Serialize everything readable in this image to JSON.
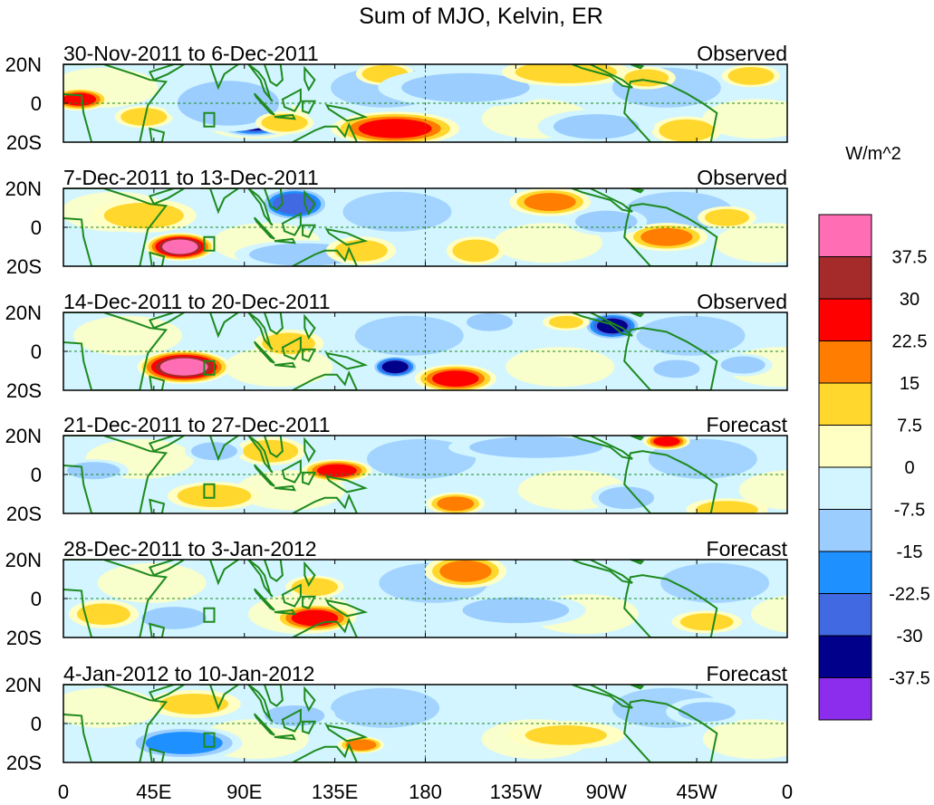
{
  "chart_data": {
    "type": "heatmap",
    "title": "Sum of MJO, Kelvin, ER",
    "units_label": "W/m^2",
    "x_ticks": [
      "0",
      "45E",
      "90E",
      "135E",
      "180",
      "135W",
      "90W",
      "45W",
      "0"
    ],
    "x_tick_values": [
      0,
      45,
      90,
      135,
      180,
      225,
      270,
      315,
      360
    ],
    "xlim": [
      0,
      360
    ],
    "y_ticks": [
      "20N",
      "0",
      "20S"
    ],
    "y_tick_values": [
      20,
      0,
      -20
    ],
    "ylim": [
      -20,
      20
    ],
    "colorbar": {
      "levels": [
        "37.5",
        "30",
        "22.5",
        "15",
        "7.5",
        "0",
        "-7.5",
        "-15",
        "-22.5",
        "-30",
        "-37.5"
      ],
      "colors": [
        "#ff6eb4",
        "#a52a2a",
        "#ff0000",
        "#ff7d00",
        "#ffd72d",
        "#ffffc3",
        "#d2f5ff",
        "#9bcdff",
        "#1e90ff",
        "#4169e1",
        "#00008b",
        "#8c2ded"
      ]
    },
    "colors": {
      "coastline": "#1e8a1e",
      "guide_lines": "#1e8a1e",
      "frame": "#000000"
    },
    "panels": [
      {
        "period": "30-Nov-2011 to 6-Dec-2011",
        "status": "Observed",
        "anomalies": [
          {
            "lon": 8,
            "lat": 2,
            "rlon": 10,
            "rlat": 4,
            "v": 25
          },
          {
            "lon": 40,
            "lat": -7,
            "rlon": 10,
            "rlat": 4,
            "v": 15
          },
          {
            "lon": 95,
            "lat": -10,
            "rlon": 14,
            "rlat": 5,
            "v": -35
          },
          {
            "lon": 82,
            "lat": 0,
            "rlon": 22,
            "rlat": 10,
            "v": -15
          },
          {
            "lon": 110,
            "lat": -10,
            "rlon": 10,
            "rlat": 4,
            "v": 15
          },
          {
            "lon": 165,
            "lat": -13,
            "rlon": 22,
            "rlat": 6,
            "v": 25
          },
          {
            "lon": 160,
            "lat": 15,
            "rlon": 10,
            "rlat": 4,
            "v": 15
          },
          {
            "lon": 200,
            "lat": 8,
            "rlon": 30,
            "rlat": 7,
            "v": -10
          },
          {
            "lon": 250,
            "lat": 16,
            "rlon": 22,
            "rlat": 5,
            "v": 15
          },
          {
            "lon": 290,
            "lat": 13,
            "rlon": 10,
            "rlat": 4,
            "v": 12
          },
          {
            "lon": 342,
            "lat": 14,
            "rlon": 10,
            "rlat": 4,
            "v": 15
          },
          {
            "lon": 310,
            "lat": -14,
            "rlon": 12,
            "rlat": 5,
            "v": 15
          },
          {
            "lon": 265,
            "lat": -12,
            "rlon": 20,
            "rlat": 6,
            "v": -10
          }
        ]
      },
      {
        "period": "7-Dec-2011 to 13-Dec-2011",
        "status": "Observed",
        "anomalies": [
          {
            "lon": 58,
            "lat": -10,
            "rlon": 12,
            "rlat": 5,
            "v": 40
          },
          {
            "lon": 40,
            "lat": 6,
            "rlon": 18,
            "rlat": 6,
            "v": 12
          },
          {
            "lon": 115,
            "lat": 12,
            "rlon": 12,
            "rlat": 6,
            "v": -30
          },
          {
            "lon": 120,
            "lat": -14,
            "rlon": 24,
            "rlat": 5,
            "v": -15
          },
          {
            "lon": 148,
            "lat": -12,
            "rlon": 12,
            "rlat": 5,
            "v": 12
          },
          {
            "lon": 205,
            "lat": -12,
            "rlon": 10,
            "rlat": 5,
            "v": 15
          },
          {
            "lon": 242,
            "lat": 13,
            "rlon": 14,
            "rlat": 5,
            "v": 18
          },
          {
            "lon": 300,
            "lat": -5,
            "rlon": 14,
            "rlat": 5,
            "v": 18
          },
          {
            "lon": 330,
            "lat": 5,
            "rlon": 10,
            "rlat": 4,
            "v": 12
          },
          {
            "lon": 270,
            "lat": 3,
            "rlon": 14,
            "rlat": 5,
            "v": -12
          }
        ]
      },
      {
        "period": "14-Dec-2011 to 20-Dec-2011",
        "status": "Observed",
        "anomalies": [
          {
            "lon": 60,
            "lat": -8,
            "rlon": 16,
            "rlat": 6,
            "v": 40
          },
          {
            "lon": 112,
            "lat": 4,
            "rlon": 12,
            "rlat": 5,
            "v": 12
          },
          {
            "lon": 165,
            "lat": -8,
            "rlon": 8,
            "rlat": 4,
            "v": -35
          },
          {
            "lon": 195,
            "lat": -14,
            "rlon": 14,
            "rlat": 5,
            "v": 25
          },
          {
            "lon": 212,
            "lat": 15,
            "rlon": 10,
            "rlat": 4,
            "v": -15
          },
          {
            "lon": 273,
            "lat": 13,
            "rlon": 10,
            "rlat": 5,
            "v": -32
          },
          {
            "lon": 305,
            "lat": -9,
            "rlon": 10,
            "rlat": 4,
            "v": -15
          },
          {
            "lon": 250,
            "lat": 15,
            "rlon": 8,
            "rlat": 3,
            "v": 10
          },
          {
            "lon": 338,
            "lat": -7,
            "rlon": 10,
            "rlat": 4,
            "v": -12
          }
        ]
      },
      {
        "period": "21-Dec-2011 to 27-Dec-2011",
        "status": "Forecast",
        "anomalies": [
          {
            "lon": 136,
            "lat": 2,
            "rlon": 12,
            "rlat": 4,
            "v": 25
          },
          {
            "lon": 103,
            "lat": 12,
            "rlon": 12,
            "rlat": 5,
            "v": 15
          },
          {
            "lon": 75,
            "lat": -11,
            "rlon": 16,
            "rlat": 5,
            "v": 15
          },
          {
            "lon": 75,
            "lat": 12,
            "rlon": 10,
            "rlat": 4,
            "v": -15
          },
          {
            "lon": 195,
            "lat": -15,
            "rlon": 10,
            "rlat": 4,
            "v": 18
          },
          {
            "lon": 235,
            "lat": 14,
            "rlon": 30,
            "rlat": 5,
            "v": -12
          },
          {
            "lon": 300,
            "lat": 17,
            "rlon": 8,
            "rlat": 3,
            "v": 25
          },
          {
            "lon": 280,
            "lat": -12,
            "rlon": 12,
            "rlat": 5,
            "v": -15
          },
          {
            "lon": 15,
            "lat": 2,
            "rlon": 12,
            "rlat": 4,
            "v": -12
          },
          {
            "lon": 330,
            "lat": -18,
            "rlon": 14,
            "rlat": 4,
            "v": 12
          }
        ]
      },
      {
        "period": "28-Dec-2011 to 3-Jan-2012",
        "status": "Forecast",
        "anomalies": [
          {
            "lon": 200,
            "lat": 14,
            "rlon": 14,
            "rlat": 6,
            "v": 18
          },
          {
            "lon": 125,
            "lat": -10,
            "rlon": 14,
            "rlat": 5,
            "v": 25
          },
          {
            "lon": 125,
            "lat": 6,
            "rlon": 10,
            "rlat": 4,
            "v": 15
          },
          {
            "lon": 55,
            "lat": -10,
            "rlon": 14,
            "rlat": 5,
            "v": -15
          },
          {
            "lon": 20,
            "lat": -8,
            "rlon": 12,
            "rlat": 5,
            "v": 12
          },
          {
            "lon": 225,
            "lat": -6,
            "rlon": 24,
            "rlat": 6,
            "v": -12
          },
          {
            "lon": 320,
            "lat": -12,
            "rlon": 12,
            "rlat": 4,
            "v": 12
          }
        ]
      },
      {
        "period": "4-Jan-2012 to 10-Jan-2012",
        "status": "Forecast",
        "anomalies": [
          {
            "lon": 60,
            "lat": -10,
            "rlon": 20,
            "rlat": 6,
            "v": -20
          },
          {
            "lon": 148,
            "lat": -11,
            "rlon": 8,
            "rlat": 3,
            "v": 20
          },
          {
            "lon": 65,
            "lat": 10,
            "rlon": 16,
            "rlat": 5,
            "v": 10
          },
          {
            "lon": 115,
            "lat": 4,
            "rlon": 14,
            "rlat": 5,
            "v": -10
          },
          {
            "lon": 320,
            "lat": 6,
            "rlon": 14,
            "rlat": 5,
            "v": -8
          },
          {
            "lon": 250,
            "lat": -6,
            "rlon": 20,
            "rlat": 5,
            "v": 8
          }
        ]
      }
    ]
  }
}
